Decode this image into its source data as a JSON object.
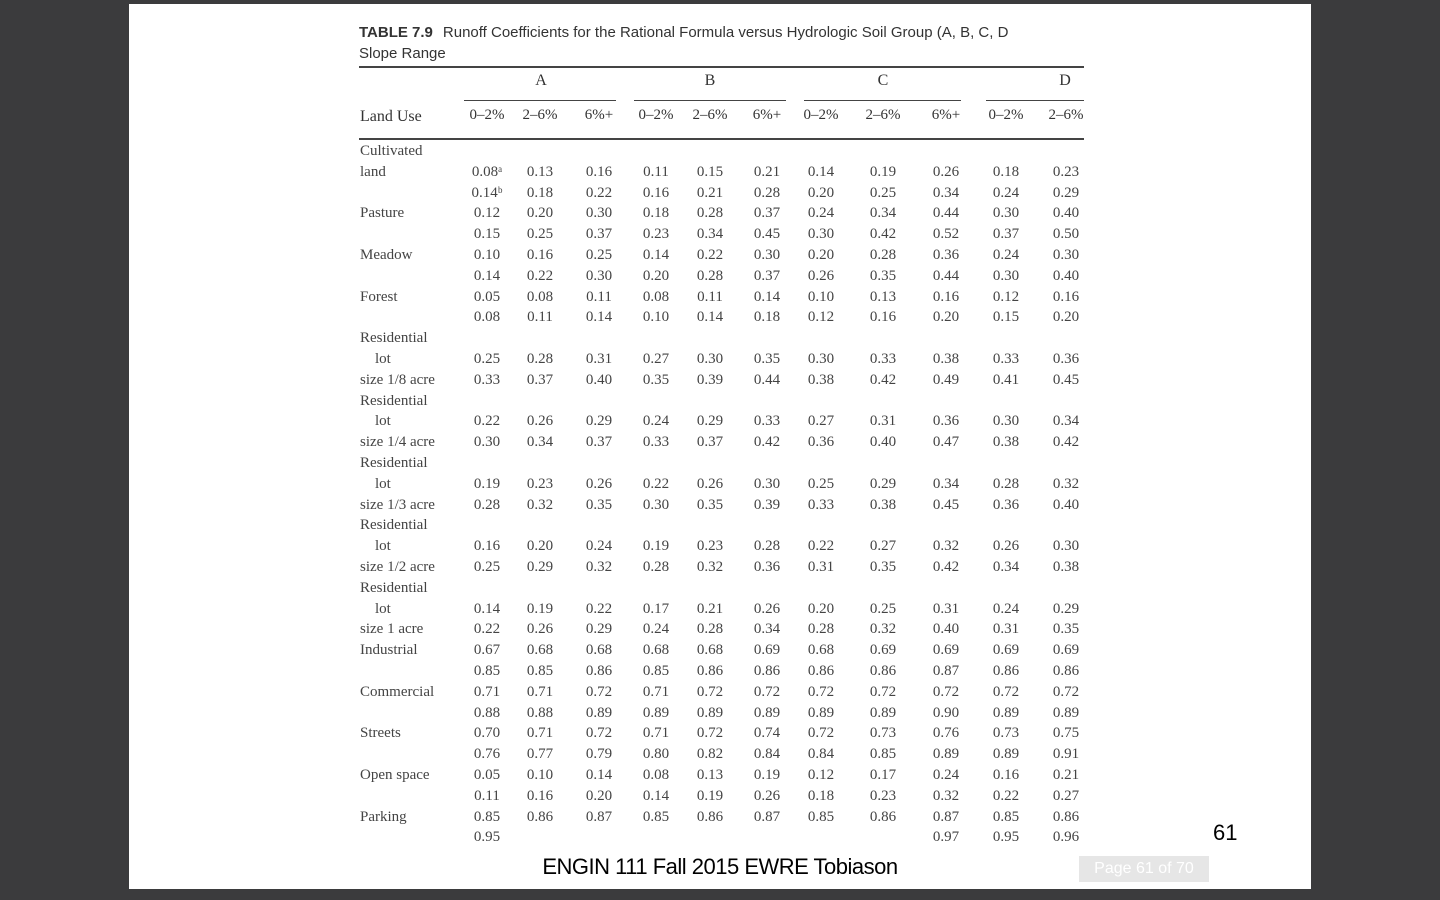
{
  "table": {
    "label": "TABLE 7.9",
    "caption": "Runoff Coefficients for the Rational Formula versus Hydrologic Soil Group (A, B, C, D",
    "caption_line2": "Slope Range",
    "land_use_header": "Land Use",
    "groups": [
      "A",
      "B",
      "C",
      "D"
    ],
    "slope_headers": [
      "0–2%",
      "2–6%",
      "6%+",
      "0–2%",
      "2–6%",
      "6%+",
      "0–2%",
      "2–6%",
      "6%+",
      "0–2%",
      "2–6%"
    ],
    "rows": [
      {
        "label": "Cultivated",
        "values": []
      },
      {
        "label": "land",
        "values": [
          "0.08ᵃ",
          "0.13",
          "0.16",
          "0.11",
          "0.15",
          "0.21",
          "0.14",
          "0.19",
          "0.26",
          "0.18",
          "0.23"
        ]
      },
      {
        "label": "",
        "values": [
          "0.14ᵇ",
          "0.18",
          "0.22",
          "0.16",
          "0.21",
          "0.28",
          "0.20",
          "0.25",
          "0.34",
          "0.24",
          "0.29"
        ]
      },
      {
        "label": "Pasture",
        "values": [
          "0.12",
          "0.20",
          "0.30",
          "0.18",
          "0.28",
          "0.37",
          "0.24",
          "0.34",
          "0.44",
          "0.30",
          "0.40"
        ]
      },
      {
        "label": "",
        "values": [
          "0.15",
          "0.25",
          "0.37",
          "0.23",
          "0.34",
          "0.45",
          "0.30",
          "0.42",
          "0.52",
          "0.37",
          "0.50"
        ]
      },
      {
        "label": "Meadow",
        "values": [
          "0.10",
          "0.16",
          "0.25",
          "0.14",
          "0.22",
          "0.30",
          "0.20",
          "0.28",
          "0.36",
          "0.24",
          "0.30"
        ]
      },
      {
        "label": "",
        "values": [
          "0.14",
          "0.22",
          "0.30",
          "0.20",
          "0.28",
          "0.37",
          "0.26",
          "0.35",
          "0.44",
          "0.30",
          "0.40"
        ]
      },
      {
        "label": "Forest",
        "values": [
          "0.05",
          "0.08",
          "0.11",
          "0.08",
          "0.11",
          "0.14",
          "0.10",
          "0.13",
          "0.16",
          "0.12",
          "0.16"
        ]
      },
      {
        "label": "",
        "values": [
          "0.08",
          "0.11",
          "0.14",
          "0.10",
          "0.14",
          "0.18",
          "0.12",
          "0.16",
          "0.20",
          "0.15",
          "0.20"
        ]
      },
      {
        "label": "Residential",
        "values": []
      },
      {
        "label": "lot",
        "indent": true,
        "values": [
          "0.25",
          "0.28",
          "0.31",
          "0.27",
          "0.30",
          "0.35",
          "0.30",
          "0.33",
          "0.38",
          "0.33",
          "0.36"
        ]
      },
      {
        "label": "size 1/8 acre",
        "values": [
          "0.33",
          "0.37",
          "0.40",
          "0.35",
          "0.39",
          "0.44",
          "0.38",
          "0.42",
          "0.49",
          "0.41",
          "0.45"
        ]
      },
      {
        "label": "Residential",
        "values": []
      },
      {
        "label": "lot",
        "indent": true,
        "values": [
          "0.22",
          "0.26",
          "0.29",
          "0.24",
          "0.29",
          "0.33",
          "0.27",
          "0.31",
          "0.36",
          "0.30",
          "0.34"
        ]
      },
      {
        "label": "size 1/4 acre",
        "values": [
          "0.30",
          "0.34",
          "0.37",
          "0.33",
          "0.37",
          "0.42",
          "0.36",
          "0.40",
          "0.47",
          "0.38",
          "0.42"
        ]
      },
      {
        "label": "Residential",
        "values": []
      },
      {
        "label": "lot",
        "indent": true,
        "values": [
          "0.19",
          "0.23",
          "0.26",
          "0.22",
          "0.26",
          "0.30",
          "0.25",
          "0.29",
          "0.34",
          "0.28",
          "0.32"
        ]
      },
      {
        "label": "size 1/3 acre",
        "values": [
          "0.28",
          "0.32",
          "0.35",
          "0.30",
          "0.35",
          "0.39",
          "0.33",
          "0.38",
          "0.45",
          "0.36",
          "0.40"
        ]
      },
      {
        "label": "Residential",
        "values": []
      },
      {
        "label": "lot",
        "indent": true,
        "values": [
          "0.16",
          "0.20",
          "0.24",
          "0.19",
          "0.23",
          "0.28",
          "0.22",
          "0.27",
          "0.32",
          "0.26",
          "0.30"
        ]
      },
      {
        "label": "size 1/2 acre",
        "values": [
          "0.25",
          "0.29",
          "0.32",
          "0.28",
          "0.32",
          "0.36",
          "0.31",
          "0.35",
          "0.42",
          "0.34",
          "0.38"
        ]
      },
      {
        "label": "Residential",
        "values": []
      },
      {
        "label": "lot",
        "indent": true,
        "values": [
          "0.14",
          "0.19",
          "0.22",
          "0.17",
          "0.21",
          "0.26",
          "0.20",
          "0.25",
          "0.31",
          "0.24",
          "0.29"
        ]
      },
      {
        "label": "size 1 acre",
        "values": [
          "0.22",
          "0.26",
          "0.29",
          "0.24",
          "0.28",
          "0.34",
          "0.28",
          "0.32",
          "0.40",
          "0.31",
          "0.35"
        ]
      },
      {
        "label": "Industrial",
        "values": [
          "0.67",
          "0.68",
          "0.68",
          "0.68",
          "0.68",
          "0.69",
          "0.68",
          "0.69",
          "0.69",
          "0.69",
          "0.69"
        ]
      },
      {
        "label": "",
        "values": [
          "0.85",
          "0.85",
          "0.86",
          "0.85",
          "0.86",
          "0.86",
          "0.86",
          "0.86",
          "0.87",
          "0.86",
          "0.86"
        ]
      },
      {
        "label": "Commercial",
        "values": [
          "0.71",
          "0.71",
          "0.72",
          "0.71",
          "0.72",
          "0.72",
          "0.72",
          "0.72",
          "0.72",
          "0.72",
          "0.72"
        ]
      },
      {
        "label": "",
        "values": [
          "0.88",
          "0.88",
          "0.89",
          "0.89",
          "0.89",
          "0.89",
          "0.89",
          "0.89",
          "0.90",
          "0.89",
          "0.89"
        ]
      },
      {
        "label": "Streets",
        "values": [
          "0.70",
          "0.71",
          "0.72",
          "0.71",
          "0.72",
          "0.74",
          "0.72",
          "0.73",
          "0.76",
          "0.73",
          "0.75"
        ]
      },
      {
        "label": "",
        "values": [
          "0.76",
          "0.77",
          "0.79",
          "0.80",
          "0.82",
          "0.84",
          "0.84",
          "0.85",
          "0.89",
          "0.89",
          "0.91"
        ]
      },
      {
        "label": "Open space",
        "values": [
          "0.05",
          "0.10",
          "0.14",
          "0.08",
          "0.13",
          "0.19",
          "0.12",
          "0.17",
          "0.24",
          "0.16",
          "0.21"
        ]
      },
      {
        "label": "",
        "values": [
          "0.11",
          "0.16",
          "0.20",
          "0.14",
          "0.19",
          "0.26",
          "0.18",
          "0.23",
          "0.32",
          "0.22",
          "0.27"
        ]
      },
      {
        "label": "Parking",
        "values": [
          "0.85",
          "0.86",
          "0.87",
          "0.85",
          "0.86",
          "0.87",
          "0.85",
          "0.86",
          "0.87",
          "0.85",
          "0.86"
        ]
      },
      {
        "label": "",
        "values": [
          "0.95",
          "",
          "",
          "",
          "",
          "",
          "",
          "",
          "0.97",
          "0.95",
          "0.96"
        ]
      }
    ]
  },
  "page_overlay": "Page 61 of 70",
  "footer": "ENGIN 111 Fall 2015 EWRE  Tobiason",
  "slide_number": "61"
}
